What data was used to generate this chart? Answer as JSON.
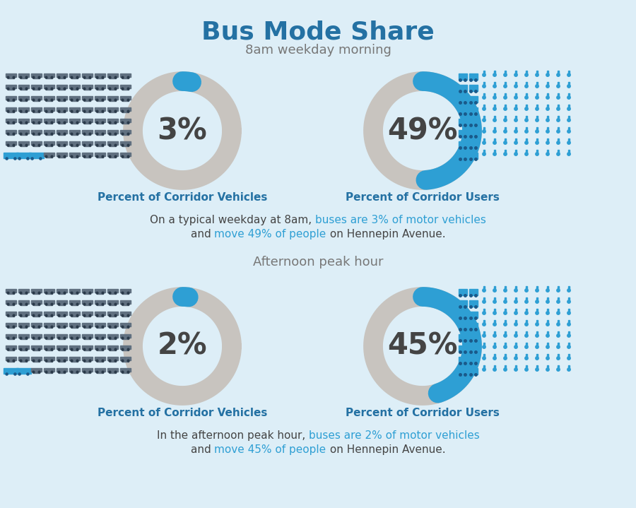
{
  "title": "Bus Mode Share",
  "subtitle_top": "8am weekday morning",
  "subtitle_bottom": "Afternoon peak hour",
  "bg_color": "#ddeef7",
  "title_color": "#2471a3",
  "subtitle_color": "#777777",
  "donut_bg_color": "#c8c4bf",
  "donut_fill_color": "#2e9fd4",
  "donut_text_color": "#444444",
  "label_color": "#2471a3",
  "desc_base_color": "#444444",
  "highlight_color": "#2e9fd4",
  "car_color": "#607080",
  "bus_color": "#2e9fd4",
  "person_color": "#2e9fd4",
  "morning_vehicles_pct": 3,
  "morning_users_pct": 49,
  "afternoon_vehicles_pct": 2,
  "afternoon_users_pct": 45,
  "label_vehicles": "Percent of Corridor Vehicles",
  "label_users": "Percent of Corridor Users",
  "n_cars_cols": 10,
  "n_cars_rows": 8,
  "n_people_cols": 11,
  "n_people_rows": 8,
  "morning_bus_vehicles": 3,
  "morning_bus_people_cols": 2,
  "afternoon_bus_vehicles": 2,
  "afternoon_bus_people_cols": 2
}
